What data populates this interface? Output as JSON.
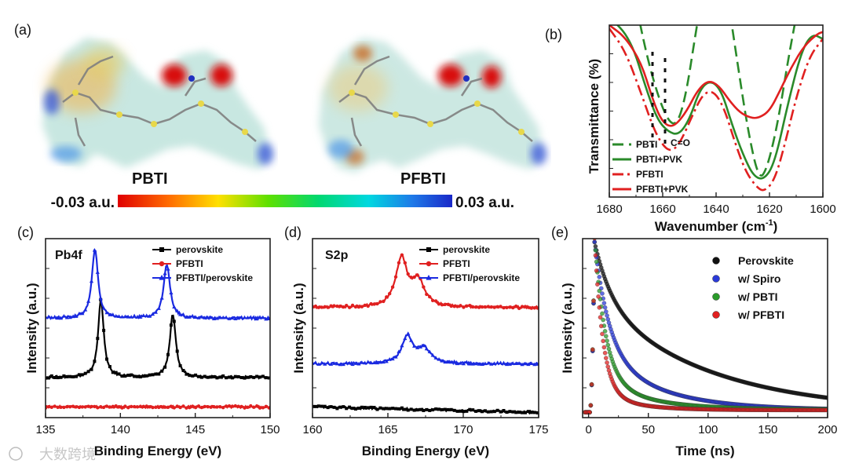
{
  "panel_labels": {
    "a": "(a)",
    "b": "(b)",
    "c": "(c)",
    "d": "(d)",
    "e": "(e)"
  },
  "molecules": {
    "left_name": "PBTI",
    "right_name": "PFBTI"
  },
  "colorbar": {
    "min_label": "-0.03 a.u.",
    "max_label": "0.03 a.u."
  },
  "watermark": "大数跨境",
  "chart_data": [
    {
      "id": "b",
      "type": "line",
      "title": "",
      "xlabel": "Wavenumber (cm-1)",
      "ylabel": "Transmittance (%)",
      "xlim": [
        1680,
        1600
      ],
      "ylim": [
        0,
        1
      ],
      "xticks": [
        1680,
        1660,
        1640,
        1620,
        1600
      ],
      "annotation": "C=O",
      "series": [
        {
          "name": "PBTI",
          "color": "#2a8a2a",
          "dash": "dash",
          "points": [
            [
              1671,
              1.2
            ],
            [
              1666,
              0.82
            ],
            [
              1661,
              0.55
            ],
            [
              1657,
              0.42
            ],
            [
              1654,
              0.44
            ],
            [
              1651,
              0.62
            ],
            [
              1648,
              0.92
            ],
            [
              1645,
              1.2
            ],
            [
              1636,
              1.2
            ],
            [
              1632,
              0.78
            ],
            [
              1628,
              0.38
            ],
            [
              1624,
              0.1
            ],
            [
              1621,
              0.16
            ],
            [
              1617,
              0.42
            ],
            [
              1613,
              0.8
            ],
            [
              1610,
              1.05
            ]
          ]
        },
        {
          "name": "PBTI+PVK",
          "color": "#2a8a2a",
          "dash": "solid",
          "points": [
            [
              1680,
              1.05
            ],
            [
              1672,
              0.92
            ],
            [
              1666,
              0.62
            ],
            [
              1662,
              0.45
            ],
            [
              1658,
              0.38
            ],
            [
              1654,
              0.36
            ],
            [
              1650,
              0.45
            ],
            [
              1646,
              0.63
            ],
            [
              1642,
              0.68
            ],
            [
              1638,
              0.62
            ],
            [
              1634,
              0.42
            ],
            [
              1630,
              0.25
            ],
            [
              1626,
              0.12
            ],
            [
              1622,
              0.1
            ],
            [
              1618,
              0.2
            ],
            [
              1613,
              0.55
            ],
            [
              1608,
              0.85
            ],
            [
              1604,
              0.95
            ],
            [
              1600,
              0.92
            ]
          ]
        },
        {
          "name": "PFBTI",
          "color": "#e02020",
          "dash": "dashdot",
          "points": [
            [
              1680,
              0.98
            ],
            [
              1674,
              0.85
            ],
            [
              1668,
              0.6
            ],
            [
              1663,
              0.38
            ],
            [
              1659,
              0.28
            ],
            [
              1656,
              0.27
            ],
            [
              1653,
              0.33
            ],
            [
              1649,
              0.47
            ],
            [
              1645,
              0.6
            ],
            [
              1641,
              0.62
            ],
            [
              1637,
              0.52
            ],
            [
              1633,
              0.32
            ],
            [
              1629,
              0.15
            ],
            [
              1625,
              0.06
            ],
            [
              1622,
              0.03
            ],
            [
              1618,
              0.1
            ],
            [
              1614,
              0.32
            ],
            [
              1610,
              0.58
            ],
            [
              1605,
              0.82
            ],
            [
              1600,
              0.92
            ]
          ]
        },
        {
          "name": "PFBTI+PVK",
          "color": "#e02020",
          "dash": "solid",
          "points": [
            [
              1680,
              1.0
            ],
            [
              1674,
              0.93
            ],
            [
              1668,
              0.78
            ],
            [
              1664,
              0.58
            ],
            [
              1661,
              0.46
            ],
            [
              1658,
              0.41
            ],
            [
              1655,
              0.42
            ],
            [
              1651,
              0.5
            ],
            [
              1647,
              0.62
            ],
            [
              1643,
              0.68
            ],
            [
              1639,
              0.65
            ],
            [
              1635,
              0.56
            ],
            [
              1631,
              0.49
            ],
            [
              1627,
              0.46
            ],
            [
              1624,
              0.46
            ],
            [
              1620,
              0.5
            ],
            [
              1616,
              0.62
            ],
            [
              1612,
              0.75
            ],
            [
              1607,
              0.88
            ],
            [
              1602,
              0.95
            ],
            [
              1600,
              0.96
            ]
          ]
        }
      ]
    },
    {
      "id": "c",
      "type": "line",
      "title": "Pb4f",
      "xlabel": "Binding Energy (eV)",
      "ylabel": "Intensity (a.u.)",
      "xlim": [
        135,
        150
      ],
      "ylim": [
        0,
        1
      ],
      "xticks": [
        135,
        140,
        145,
        150
      ],
      "series": [
        {
          "name": "perovskite",
          "color": "#000000",
          "marker": "square",
          "baseline": 0.225,
          "peaks": [
            [
              138.7,
              0.44,
              0.22
            ],
            [
              143.5,
              0.35,
              0.24
            ]
          ]
        },
        {
          "name": "PFBTI",
          "color": "#e02020",
          "marker": "circle",
          "baseline": 0.06,
          "peaks": []
        },
        {
          "name": "PFBTI/perovskite",
          "color": "#1a2ae0",
          "marker": "triangle",
          "baseline": 0.555,
          "peaks": [
            [
              138.3,
              0.39,
              0.24
            ],
            [
              143.1,
              0.3,
              0.26
            ]
          ]
        }
      ]
    },
    {
      "id": "d",
      "type": "line",
      "title": "S2p",
      "xlabel": "Binding Energy (eV)",
      "ylabel": "Intensity (a.u.)",
      "xlim": [
        160,
        175
      ],
      "ylim": [
        0,
        1
      ],
      "xticks": [
        160,
        165,
        170,
        175
      ],
      "series": [
        {
          "name": "perovskite",
          "color": "#000000",
          "marker": "square",
          "baseline": 0.06,
          "slope": -0.002,
          "peaks": []
        },
        {
          "name": "PFBTI",
          "color": "#e02020",
          "marker": "circle",
          "baseline": 0.615,
          "peaks": [
            [
              165.9,
              0.27,
              0.45
            ],
            [
              167.0,
              0.14,
              0.5
            ]
          ]
        },
        {
          "name": "PFBTI/perovskite",
          "color": "#1a2ae0",
          "marker": "triangle",
          "baseline": 0.3,
          "peaks": [
            [
              166.3,
              0.15,
              0.45
            ],
            [
              167.4,
              0.08,
              0.5
            ]
          ]
        }
      ]
    },
    {
      "id": "e",
      "type": "scatter",
      "title": "",
      "xlabel": "Time (ns)",
      "ylabel": "Intensity (a.u.)",
      "xlim": [
        -5,
        200
      ],
      "ylim": [
        0,
        1
      ],
      "xticks": [
        0,
        50,
        100,
        150,
        200
      ],
      "series": [
        {
          "name": "Perovskite",
          "color": "#111111",
          "decay": {
            "t0": 5,
            "a1": 0.32,
            "tau1": 14,
            "a2": 0.63,
            "tau2": 95,
            "floor": 0.0
          }
        },
        {
          "name": "w/ Spiro",
          "color": "#2a3ad8",
          "decay": {
            "t0": 5,
            "a1": 0.6,
            "tau1": 12,
            "a2": 0.34,
            "tau2": 50,
            "floor": 0.012
          }
        },
        {
          "name": "w/ PBTI",
          "color": "#2a9a2a",
          "decay": {
            "t0": 5,
            "a1": 0.78,
            "tau1": 9,
            "a2": 0.18,
            "tau2": 40,
            "floor": 0.015
          }
        },
        {
          "name": "w/ PFBTI",
          "color": "#e02020",
          "decay": {
            "t0": 5,
            "a1": 0.86,
            "tau1": 7,
            "a2": 0.1,
            "tau2": 30,
            "floor": 0.012
          }
        }
      ]
    }
  ]
}
